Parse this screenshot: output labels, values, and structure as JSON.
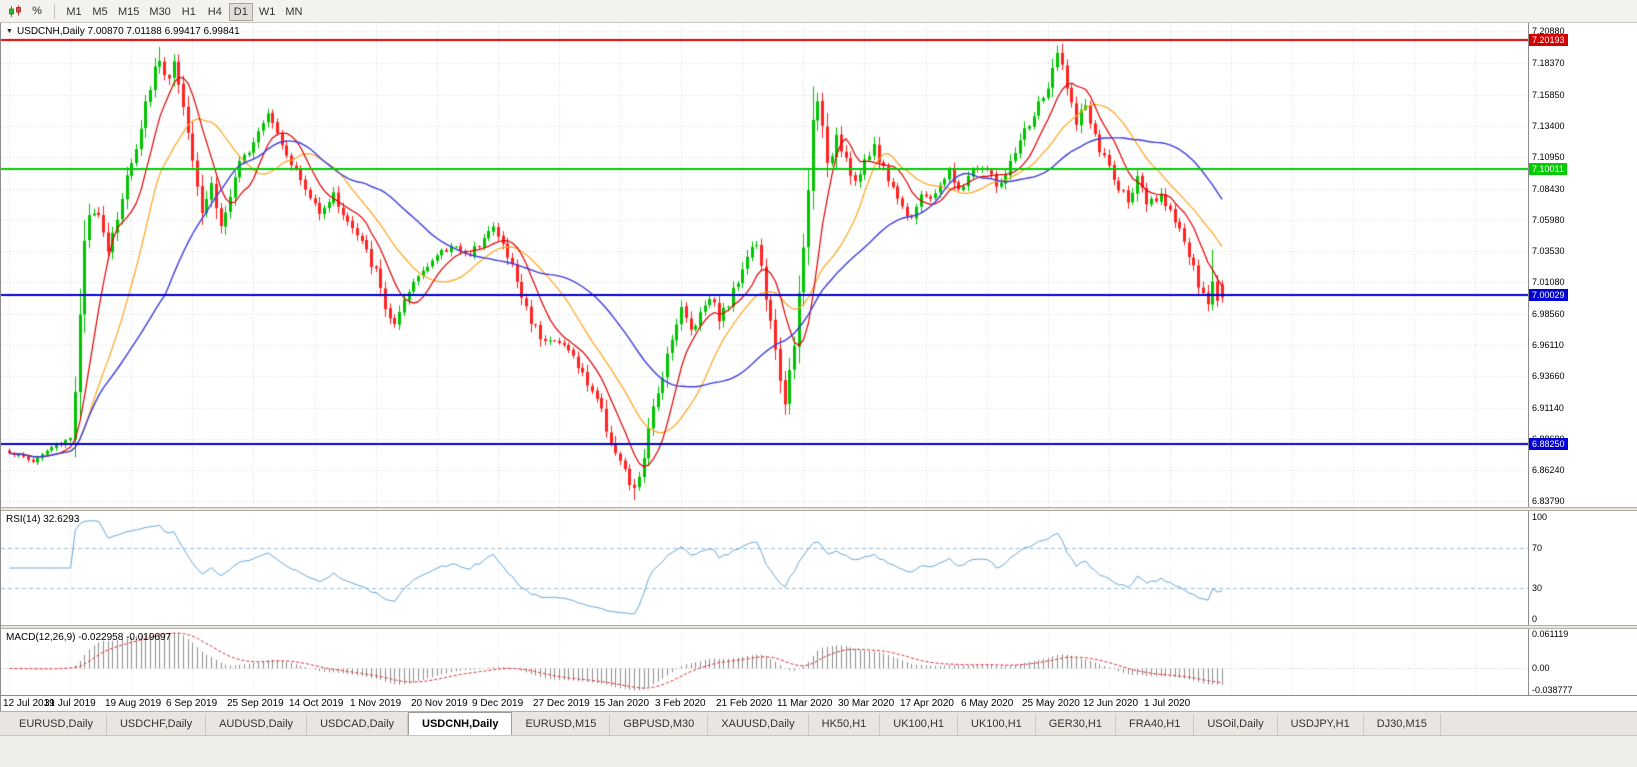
{
  "toolbar": {
    "percent_glyph": "%",
    "timeframes": [
      "M1",
      "M5",
      "M15",
      "M30",
      "H1",
      "H4",
      "D1",
      "W1",
      "MN"
    ],
    "active_timeframe": "D1"
  },
  "chart": {
    "symbol": "USDCNH",
    "period": "Daily",
    "open": "7.00870",
    "high": "7.01188",
    "low": "6.99417",
    "close": "6.99841",
    "dropdown_glyph": "▼",
    "title_display": "USDCNH,Daily 7.00870 7.01188 6.99417 6.99841"
  },
  "chart_data": {
    "type": "candlestick",
    "symbol": "USDCNH",
    "timeframe": "Daily",
    "bars": 259,
    "bars_per_date_tick": 13,
    "seed": 1337,
    "price_range": {
      "max": 7.215,
      "min": 6.833
    },
    "price_axis_ticks": [
      "7.20880",
      "7.18370",
      "7.15850",
      "7.13400",
      "7.10950",
      "7.08430",
      "7.05980",
      "7.03530",
      "7.01080",
      "6.98560",
      "6.96110",
      "6.93660",
      "6.91140",
      "6.88690",
      "6.86240",
      "6.83790"
    ],
    "date_labels": [
      "12 Jul 2019",
      "31 Jul 2019",
      "19 Aug 2019",
      "6 Sep 2019",
      "25 Sep 2019",
      "14 Oct 2019",
      "1 Nov 2019",
      "20 Nov 2019",
      "9 Dec 2019",
      "27 Dec 2019",
      "15 Jan 2020",
      "3 Feb 2020",
      "21 Feb 2020",
      "11 Mar 2020",
      "30 Mar 2020",
      "17 Apr 2020",
      "6 May 2020",
      "25 May 2020",
      "12 Jun 2020",
      "1 Jul 2020"
    ],
    "candle_up_color": "#00C400",
    "candle_down_color": "#FF2222",
    "close_anchors": [
      [
        0,
        6.877,
        0.5
      ],
      [
        5,
        6.869,
        0.4
      ],
      [
        9,
        6.88,
        0.5
      ],
      [
        13,
        6.888,
        0.7
      ],
      [
        14,
        6.928,
        1.6
      ],
      [
        15,
        6.98,
        1.8
      ],
      [
        16,
        7.042,
        1.8
      ],
      [
        17,
        7.058,
        1.4
      ],
      [
        19,
        7.068,
        1.2
      ],
      [
        21,
        7.038,
        1.3
      ],
      [
        23,
        7.062,
        1.2
      ],
      [
        25,
        7.092,
        1.3
      ],
      [
        26,
        7.102,
        1.2
      ],
      [
        28,
        7.136,
        1.3
      ],
      [
        30,
        7.166,
        1.4
      ],
      [
        32,
        7.189,
        1.5
      ],
      [
        33,
        7.17,
        1.4
      ],
      [
        35,
        7.184,
        1.3
      ],
      [
        37,
        7.15,
        1.3
      ],
      [
        39,
        7.112,
        1.3
      ],
      [
        41,
        7.068,
        1.3
      ],
      [
        43,
        7.088,
        1.1
      ],
      [
        45,
        7.054,
        1.2
      ],
      [
        47,
        7.078,
        1.0
      ],
      [
        49,
        7.102,
        1.0
      ],
      [
        52,
        7.124,
        1.0
      ],
      [
        55,
        7.147,
        1.0
      ],
      [
        58,
        7.121,
        1.0
      ],
      [
        61,
        7.098,
        0.9
      ],
      [
        64,
        7.076,
        0.9
      ],
      [
        66,
        7.068,
        0.9
      ],
      [
        69,
        7.079,
        0.8
      ],
      [
        72,
        7.058,
        0.9
      ],
      [
        75,
        7.041,
        0.9
      ],
      [
        78,
        7.018,
        1.0
      ],
      [
        80,
        6.991,
        1.1
      ],
      [
        82,
        6.975,
        1.0
      ],
      [
        84,
        6.993,
        0.9
      ],
      [
        86,
        7.01,
        0.9
      ],
      [
        89,
        7.026,
        0.8
      ],
      [
        92,
        7.033,
        0.8
      ],
      [
        95,
        7.041,
        0.8
      ],
      [
        98,
        7.029,
        0.8
      ],
      [
        101,
        7.049,
        0.9
      ],
      [
        103,
        7.053,
        0.9
      ],
      [
        105,
        7.039,
        0.9
      ],
      [
        107,
        7.023,
        0.9
      ],
      [
        109,
        6.999,
        1.0
      ],
      [
        111,
        6.981,
        1.0
      ],
      [
        113,
        6.969,
        0.9
      ],
      [
        116,
        6.963,
        0.8
      ],
      [
        119,
        6.959,
        0.8
      ],
      [
        121,
        6.943,
        0.9
      ],
      [
        123,
        6.931,
        0.9
      ],
      [
        125,
        6.919,
        0.9
      ],
      [
        127,
        6.896,
        1.0
      ],
      [
        129,
        6.876,
        1.1
      ],
      [
        131,
        6.859,
        1.1
      ],
      [
        133,
        6.844,
        1.3
      ],
      [
        135,
        6.873,
        1.2
      ],
      [
        137,
        6.909,
        1.2
      ],
      [
        139,
        6.939,
        1.1
      ],
      [
        141,
        6.969,
        1.1
      ],
      [
        143,
        6.989,
        1.0
      ],
      [
        145,
        6.973,
        1.0
      ],
      [
        147,
        6.986,
        0.9
      ],
      [
        149,
        7.001,
        0.9
      ],
      [
        151,
        6.983,
        0.9
      ],
      [
        153,
        6.993,
        0.9
      ],
      [
        155,
        7.013,
        1.0
      ],
      [
        157,
        7.033,
        1.0
      ],
      [
        159,
        7.041,
        1.0
      ],
      [
        161,
        6.999,
        1.3
      ],
      [
        163,
        6.953,
        1.4
      ],
      [
        165,
        6.919,
        1.5
      ],
      [
        167,
        6.956,
        1.5
      ],
      [
        168,
        6.999,
        1.6
      ],
      [
        169,
        7.036,
        1.6
      ],
      [
        170,
        7.083,
        1.7
      ],
      [
        171,
        7.136,
        1.7
      ],
      [
        172,
        7.159,
        1.5
      ],
      [
        174,
        7.099,
        1.5
      ],
      [
        176,
        7.129,
        1.3
      ],
      [
        178,
        7.109,
        1.2
      ],
      [
        180,
        7.089,
        1.1
      ],
      [
        182,
        7.103,
        1.0
      ],
      [
        184,
        7.119,
        1.0
      ],
      [
        186,
        7.099,
        0.9
      ],
      [
        188,
        7.086,
        0.9
      ],
      [
        190,
        7.069,
        0.9
      ],
      [
        192,
        7.063,
        0.8
      ],
      [
        194,
        7.081,
        0.8
      ],
      [
        196,
        7.073,
        0.8
      ],
      [
        198,
        7.089,
        0.8
      ],
      [
        200,
        7.097,
        0.8
      ],
      [
        202,
        7.081,
        0.8
      ],
      [
        204,
        7.095,
        0.8
      ],
      [
        206,
        7.101,
        0.8
      ],
      [
        208,
        7.099,
        0.8
      ],
      [
        210,
        7.087,
        0.9
      ],
      [
        212,
        7.093,
        0.9
      ],
      [
        214,
        7.111,
        1.0
      ],
      [
        216,
        7.129,
        1.0
      ],
      [
        218,
        7.143,
        1.1
      ],
      [
        220,
        7.156,
        1.2
      ],
      [
        222,
        7.174,
        1.4
      ],
      [
        223,
        7.19,
        1.5
      ],
      [
        225,
        7.169,
        1.4
      ],
      [
        227,
        7.133,
        1.3
      ],
      [
        229,
        7.151,
        1.2
      ],
      [
        231,
        7.123,
        1.1
      ],
      [
        234,
        7.101,
        1.0
      ],
      [
        236,
        7.083,
        1.0
      ],
      [
        238,
        7.077,
        0.9
      ],
      [
        240,
        7.091,
        0.9
      ],
      [
        242,
        7.071,
        0.9
      ],
      [
        245,
        7.077,
        0.8
      ],
      [
        247,
        7.069,
        0.9
      ],
      [
        249,
        7.053,
        1.0
      ],
      [
        251,
        7.031,
        1.1
      ],
      [
        253,
        7.007,
        1.1
      ],
      [
        255,
        6.991,
        1.1
      ],
      [
        256,
        7.013,
        1.0
      ],
      [
        257,
        6.997,
        0.9
      ],
      [
        258,
        6.99841,
        0.8
      ]
    ],
    "spikes": [
      {
        "bar": 32,
        "high": 7.1962
      },
      {
        "bar": 133,
        "low": 6.8386
      },
      {
        "bar": 171,
        "high": 7.165
      },
      {
        "bar": 223,
        "high": 7.1973
      },
      {
        "bar": 256,
        "high": 7.036
      }
    ],
    "hlines": [
      {
        "price": 7.20193,
        "label": "7.20193",
        "color": "#D40000"
      },
      {
        "price": 7.10011,
        "label": "7.10011",
        "color": "#00CC00"
      },
      {
        "price": 7.00029,
        "label": "7.00029",
        "color": "#0000D4"
      },
      {
        "price": 6.8825,
        "label": "6.88250",
        "color": "#0000D4"
      }
    ],
    "moving_averages": [
      {
        "name": "MA-fast",
        "period": 8,
        "color": "#E00000"
      },
      {
        "name": "MA-medium",
        "period": 17,
        "color": "#FFA520"
      },
      {
        "name": "MA-slow",
        "period": 34,
        "color": "#3E3EDD"
      }
    ],
    "rsi": {
      "display": "RSI(14) 32.6293",
      "period": 14,
      "value": 32.6293,
      "levels": [
        100,
        70,
        30,
        0
      ],
      "color": "#69A9DB"
    },
    "macd": {
      "display": "MACD(12,26,9) -0.022958 -0.019697",
      "fast": 12,
      "slow": 26,
      "signal": 9,
      "main_value": -0.022958,
      "signal_value": -0.019697,
      "axis_ticks": [
        "0.061119",
        "0.00",
        "-0.038777"
      ],
      "range": {
        "max": 0.061119,
        "min": -0.038777
      },
      "histogram_color": "#8E8E8E",
      "signal_color": "#E03030"
    }
  },
  "tabs": {
    "active_index": 4,
    "items": [
      "EURUSD,Daily",
      "USDCHF,Daily",
      "AUDUSD,Daily",
      "USDCAD,Daily",
      "USDCNH,Daily",
      "EURUSD,M15",
      "GBPUSD,M30",
      "XAUUSD,Daily",
      "HK50,H1",
      "UK100,H1",
      "UK100,H1",
      "GER30,H1",
      "FRA40,H1",
      "USOil,Daily",
      "USDJPY,H1",
      "DJ30,M15"
    ]
  }
}
